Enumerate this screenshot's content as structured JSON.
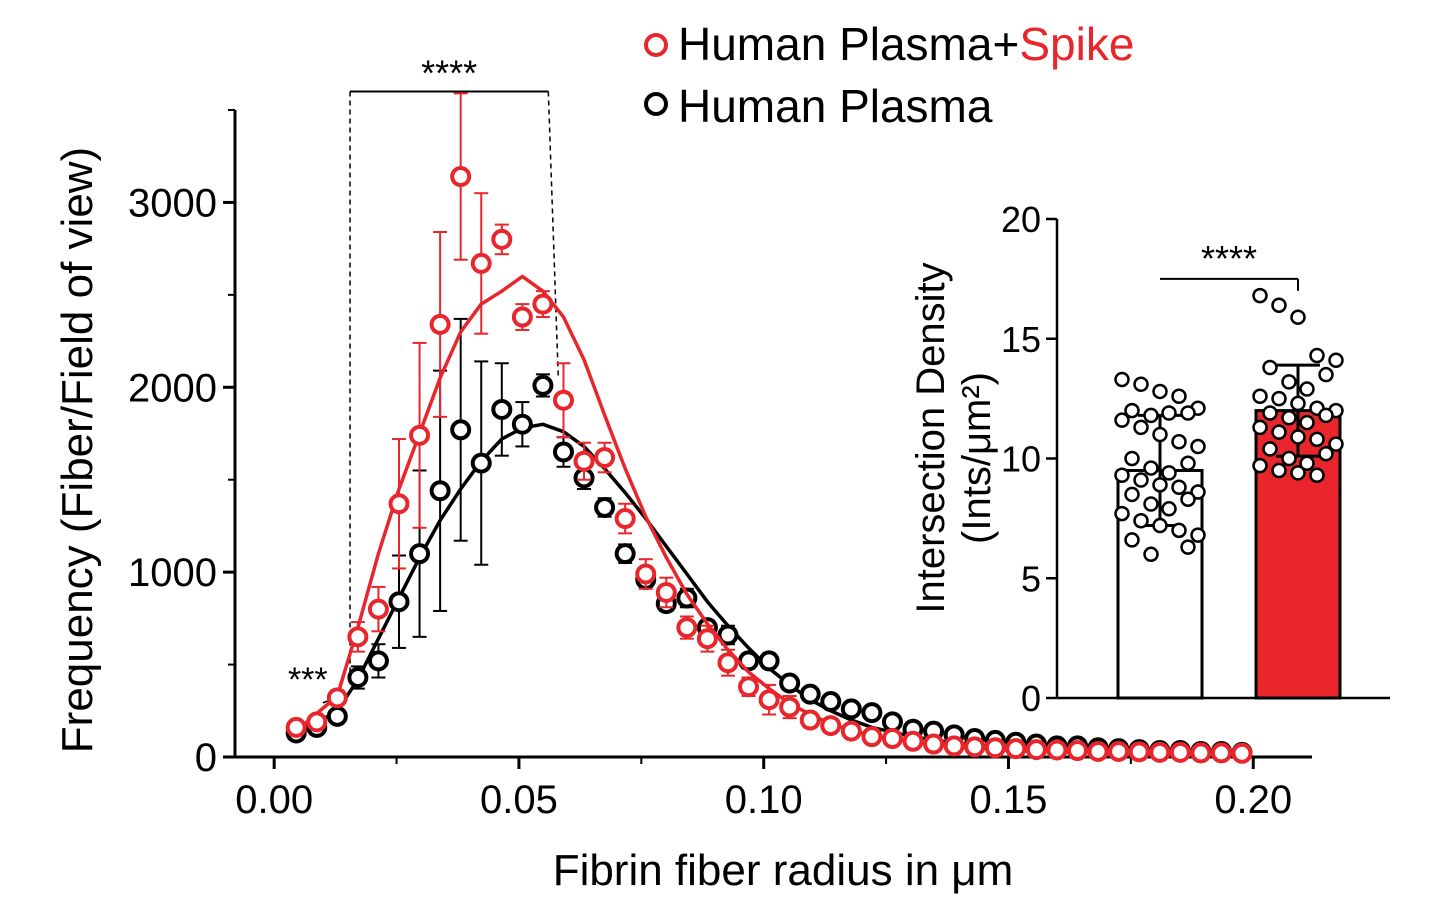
{
  "legend": {
    "entry_spike_prefix": "Human Plasma+",
    "entry_spike_highlight": "Spike",
    "entry_plasma": "Human Plasma"
  },
  "colors": {
    "spike": "#e8262b",
    "plasma": "#000000"
  },
  "chart_data": [
    {
      "type": "scatter",
      "xlabel": "Fibrin fiber radius in μm",
      "ylabel": "Frequency (Fiber/Field of view)",
      "xlim": [
        -0.008,
        0.212
      ],
      "ylim": [
        0,
        3500
      ],
      "x_ticks": [
        0.0,
        0.05,
        0.1,
        0.15,
        0.2
      ],
      "x_tick_labels": [
        "0.00",
        "0.05",
        "0.10",
        "0.15",
        "0.20"
      ],
      "y_ticks": [
        0,
        1000,
        2000,
        3000
      ],
      "y_tick_labels": [
        "0",
        "1000",
        "2000",
        "3000"
      ],
      "grid": false,
      "legend_position": "top-center",
      "annotations": [
        {
          "text": "****",
          "x_from": 0.0155,
          "x_to": 0.056,
          "y": 3600
        },
        {
          "text": "***",
          "x": 0.013,
          "y": 520
        }
      ],
      "series": [
        {
          "name": "Human Plasma+Spike",
          "color": "#e8262b",
          "x": [
            0.0045,
            0.0087,
            0.0129,
            0.0171,
            0.0213,
            0.0255,
            0.0297,
            0.0339,
            0.0381,
            0.0423,
            0.0465,
            0.0507,
            0.0549,
            0.0591,
            0.0633,
            0.0675,
            0.0717,
            0.0759,
            0.0801,
            0.0843,
            0.0885,
            0.0927,
            0.0969,
            0.1011,
            0.1053,
            0.1095,
            0.1137,
            0.1179,
            0.1221,
            0.1263,
            0.1305,
            0.1347,
            0.1389,
            0.1431,
            0.1473,
            0.1515,
            0.1557,
            0.1599,
            0.1641,
            0.1683,
            0.1725,
            0.1767,
            0.1809,
            0.1851,
            0.1893,
            0.1935,
            0.1977
          ],
          "y": [
            160,
            190,
            320,
            650,
            800,
            1370,
            1740,
            2340,
            3140,
            2670,
            2800,
            2380,
            2450,
            1930,
            1600,
            1620,
            1290,
            990,
            890,
            700,
            640,
            510,
            380,
            310,
            270,
            200,
            170,
            140,
            110,
            100,
            85,
            70,
            60,
            55,
            50,
            45,
            40,
            38,
            35,
            30,
            30,
            28,
            25,
            25,
            22,
            22,
            20
          ],
          "err": [
            20,
            20,
            40,
            80,
            120,
            350,
            500,
            500,
            450,
            380,
            80,
            70,
            70,
            200,
            100,
            80,
            80,
            80,
            80,
            60,
            70,
            70,
            50,
            80,
            60,
            40,
            30,
            20,
            20,
            15,
            15,
            12,
            10,
            10,
            8,
            8,
            8,
            8,
            6,
            6,
            6,
            5,
            5,
            5,
            5,
            5,
            5
          ],
          "fit_x": [
            0.0045,
            0.0129,
            0.0171,
            0.0213,
            0.0255,
            0.0297,
            0.0339,
            0.0381,
            0.0423,
            0.0465,
            0.0507,
            0.0549,
            0.0591,
            0.0633,
            0.0675,
            0.0717,
            0.0759,
            0.0801,
            0.0843,
            0.0885,
            0.0927,
            0.0969,
            0.1011,
            0.1053,
            0.1095,
            0.1137,
            0.1179,
            0.1221,
            0.1305,
            0.1389,
            0.1473,
            0.1557,
            0.1641,
            0.1725,
            0.1809,
            0.1893,
            0.1977
          ],
          "fit_y": [
            140,
            330,
            700,
            1100,
            1450,
            1750,
            2050,
            2300,
            2450,
            2520,
            2600,
            2520,
            2380,
            2150,
            1850,
            1560,
            1300,
            1080,
            880,
            720,
            580,
            460,
            370,
            290,
            230,
            180,
            145,
            115,
            80,
            55,
            40,
            30,
            25,
            20,
            17,
            15,
            13
          ]
        },
        {
          "name": "Human Plasma",
          "color": "#000000",
          "x": [
            0.0045,
            0.0087,
            0.0129,
            0.0171,
            0.0213,
            0.0255,
            0.0297,
            0.0339,
            0.0381,
            0.0423,
            0.0465,
            0.0507,
            0.0549,
            0.0591,
            0.0633,
            0.0675,
            0.0717,
            0.0759,
            0.0801,
            0.0843,
            0.0885,
            0.0927,
            0.0969,
            0.1011,
            0.1053,
            0.1095,
            0.1137,
            0.1179,
            0.1221,
            0.1263,
            0.1305,
            0.1347,
            0.1389,
            0.1431,
            0.1473,
            0.1515,
            0.1557,
            0.1599,
            0.1641,
            0.1683,
            0.1725,
            0.1767,
            0.1809,
            0.1851,
            0.1893,
            0.1935,
            0.1977
          ],
          "y": [
            130,
            160,
            220,
            430,
            520,
            840,
            1100,
            1440,
            1770,
            1590,
            1880,
            1800,
            2010,
            1650,
            1510,
            1350,
            1100,
            960,
            830,
            860,
            700,
            660,
            520,
            520,
            400,
            340,
            300,
            260,
            240,
            190,
            150,
            140,
            120,
            100,
            90,
            80,
            70,
            60,
            60,
            50,
            45,
            40,
            35,
            35,
            30,
            30,
            25
          ],
          "err": [
            20,
            20,
            30,
            60,
            90,
            250,
            450,
            650,
            600,
            550,
            250,
            120,
            60,
            80,
            60,
            50,
            50,
            40,
            40,
            50,
            40,
            50,
            40,
            40,
            30,
            30,
            20,
            20,
            20,
            15,
            15,
            12,
            10,
            10,
            8,
            8,
            8,
            8,
            6,
            6,
            6,
            5,
            5,
            5,
            5,
            5,
            5
          ],
          "fit_x": [
            0.0045,
            0.0129,
            0.0171,
            0.0213,
            0.0255,
            0.0297,
            0.0339,
            0.0381,
            0.0423,
            0.0465,
            0.0507,
            0.0549,
            0.0591,
            0.0633,
            0.0675,
            0.0717,
            0.0759,
            0.0801,
            0.0843,
            0.0885,
            0.0927,
            0.0969,
            0.1011,
            0.1053,
            0.1095,
            0.1137,
            0.1179,
            0.1221,
            0.1305,
            0.1389,
            0.1473,
            0.1557,
            0.1641,
            0.1725,
            0.1809,
            0.1893,
            0.1977
          ],
          "fit_y": [
            120,
            250,
            420,
            640,
            860,
            1080,
            1280,
            1450,
            1600,
            1720,
            1780,
            1800,
            1760,
            1680,
            1560,
            1430,
            1290,
            1140,
            990,
            840,
            710,
            590,
            480,
            390,
            310,
            250,
            200,
            160,
            110,
            75,
            55,
            40,
            30,
            25,
            20,
            17,
            15
          ]
        }
      ]
    },
    {
      "type": "bar",
      "ylabel_line1": "Intersection Density",
      "ylabel_line2": "(Ints/μm²)",
      "ylim": [
        0,
        20
      ],
      "y_ticks": [
        0,
        5,
        10,
        15,
        20
      ],
      "y_tick_labels": [
        "0",
        "5",
        "10",
        "15",
        "20"
      ],
      "annotations": [
        {
          "text": "****",
          "between": [
            0,
            1
          ],
          "y": 17.5
        }
      ],
      "series": [
        {
          "name": "Human Plasma",
          "value": 9.5,
          "sd": 2.3,
          "fill": "#ffffff",
          "points": [
            13.3,
            13.1,
            12.8,
            12.6,
            12.1,
            12.0,
            11.9,
            11.8,
            11.9,
            11.6,
            11.3,
            11.0,
            10.7,
            10.5,
            10.0,
            9.8,
            9.6,
            9.4,
            9.3,
            9.1,
            8.9,
            8.8,
            8.6,
            8.5,
            8.3,
            8.1,
            7.9,
            7.7,
            7.4,
            7.2,
            7.0,
            6.8,
            6.6,
            6.3,
            6.0
          ]
        },
        {
          "name": "Human Plasma+Spike",
          "value": 12.0,
          "sd": 1.9,
          "fill": "#e8262b",
          "points": [
            16.8,
            16.4,
            15.9,
            14.3,
            14.1,
            13.8,
            13.5,
            13.2,
            12.9,
            12.6,
            12.5,
            12.3,
            12.1,
            12.0,
            11.9,
            11.8,
            11.7,
            11.5,
            11.3,
            11.1,
            10.9,
            10.8,
            10.6,
            10.4,
            10.2,
            10.0,
            9.8,
            9.7,
            9.5,
            9.4,
            9.3
          ]
        }
      ]
    }
  ]
}
